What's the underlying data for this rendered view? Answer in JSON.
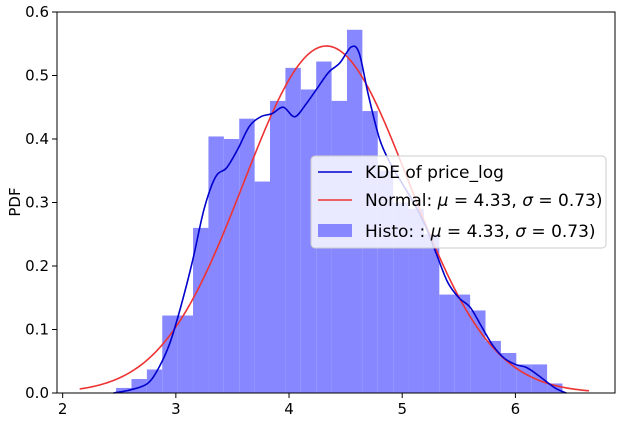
{
  "chart_data": {
    "type": "bar",
    "title": "",
    "xlabel": "",
    "ylabel": "PDF",
    "xlim": [
      1.95,
      6.88
    ],
    "ylim": [
      0,
      0.6
    ],
    "xticks": [
      2,
      3,
      4,
      5,
      6
    ],
    "yticks": [
      0.0,
      0.1,
      0.2,
      0.3,
      0.4,
      0.5,
      0.6
    ],
    "xtick_labels": [
      "2",
      "3",
      "4",
      "5",
      "6"
    ],
    "ytick_labels": [
      "0.0",
      "0.1",
      "0.2",
      "0.3",
      "0.4",
      "0.5",
      "0.6"
    ],
    "grid": false,
    "legend_position": "center-right",
    "colors": {
      "histogram": "#8787ff",
      "kde": "#0000cc",
      "normal": "#ee3333"
    },
    "series": [
      {
        "name": "KDE of price_log",
        "type": "line",
        "points": [
          [
            2.45,
            0.0
          ],
          [
            2.6,
            0.005
          ],
          [
            2.75,
            0.015
          ],
          [
            2.85,
            0.04
          ],
          [
            2.95,
            0.08
          ],
          [
            3.05,
            0.14
          ],
          [
            3.15,
            0.21
          ],
          [
            3.25,
            0.29
          ],
          [
            3.35,
            0.34
          ],
          [
            3.45,
            0.355
          ],
          [
            3.55,
            0.385
          ],
          [
            3.65,
            0.42
          ],
          [
            3.75,
            0.435
          ],
          [
            3.85,
            0.44
          ],
          [
            3.95,
            0.45
          ],
          [
            4.05,
            0.435
          ],
          [
            4.15,
            0.455
          ],
          [
            4.25,
            0.48
          ],
          [
            4.35,
            0.505
          ],
          [
            4.45,
            0.52
          ],
          [
            4.55,
            0.545
          ],
          [
            4.62,
            0.535
          ],
          [
            4.7,
            0.47
          ],
          [
            4.8,
            0.4
          ],
          [
            4.9,
            0.36
          ],
          [
            5.0,
            0.33
          ],
          [
            5.1,
            0.3
          ],
          [
            5.2,
            0.265
          ],
          [
            5.3,
            0.22
          ],
          [
            5.4,
            0.175
          ],
          [
            5.5,
            0.15
          ],
          [
            5.6,
            0.135
          ],
          [
            5.7,
            0.105
          ],
          [
            5.8,
            0.075
          ],
          [
            5.9,
            0.055
          ],
          [
            6.0,
            0.045
          ],
          [
            6.1,
            0.04
          ],
          [
            6.2,
            0.028
          ],
          [
            6.35,
            0.008
          ],
          [
            6.45,
            0.0
          ]
        ]
      },
      {
        "name": "Normal: $\\mu=4.33$, $\\sigma=0.73$)",
        "label_parts": [
          "Normal: ",
          "μ",
          " = 4.33, ",
          "σ",
          " = 0.73)"
        ],
        "type": "line",
        "mu": 4.33,
        "sigma": 0.73,
        "x_range": [
          2.15,
          6.65
        ]
      },
      {
        "name": "Histo: : $\\mu=4.33$, $\\sigma=0.73$)",
        "label_parts": [
          "Histo: : ",
          "μ",
          " = 4.33, ",
          "σ",
          " = 0.73)"
        ],
        "type": "bar",
        "bin_width": 0.136,
        "bins": [
          {
            "x": 2.54,
            "value": 0.008
          },
          {
            "x": 2.676,
            "value": 0.022
          },
          {
            "x": 2.812,
            "value": 0.037
          },
          {
            "x": 2.948,
            "value": 0.122
          },
          {
            "x": 3.084,
            "value": 0.122
          },
          {
            "x": 3.22,
            "value": 0.26
          },
          {
            "x": 3.356,
            "value": 0.404
          },
          {
            "x": 3.492,
            "value": 0.4
          },
          {
            "x": 3.628,
            "value": 0.432
          },
          {
            "x": 3.764,
            "value": 0.333
          },
          {
            "x": 3.9,
            "value": 0.46
          },
          {
            "x": 4.036,
            "value": 0.512
          },
          {
            "x": 4.172,
            "value": 0.478
          },
          {
            "x": 4.308,
            "value": 0.522
          },
          {
            "x": 4.444,
            "value": 0.46
          },
          {
            "x": 4.58,
            "value": 0.572
          },
          {
            "x": 4.716,
            "value": 0.444
          },
          {
            "x": 4.852,
            "value": 0.35
          },
          {
            "x": 4.988,
            "value": 0.3
          },
          {
            "x": 5.124,
            "value": 0.29
          },
          {
            "x": 5.26,
            "value": 0.25
          },
          {
            "x": 5.396,
            "value": 0.155
          },
          {
            "x": 5.532,
            "value": 0.155
          },
          {
            "x": 5.668,
            "value": 0.13
          },
          {
            "x": 5.804,
            "value": 0.082
          },
          {
            "x": 5.94,
            "value": 0.063
          },
          {
            "x": 6.076,
            "value": 0.045
          },
          {
            "x": 6.212,
            "value": 0.045
          },
          {
            "x": 6.348,
            "value": 0.015
          }
        ]
      }
    ]
  }
}
